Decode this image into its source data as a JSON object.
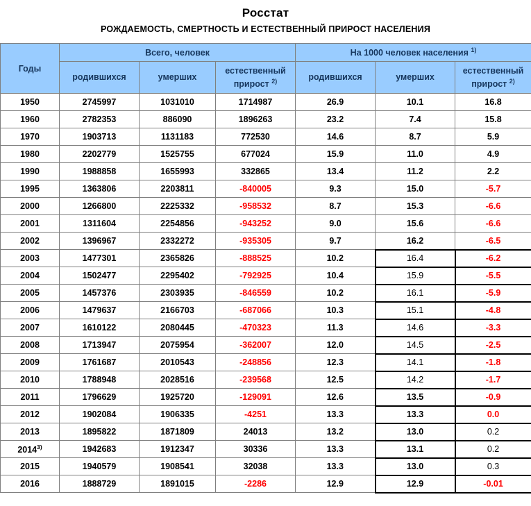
{
  "title": "Росстат",
  "subtitle": "РОЖДАЕМОСТЬ, СМЕРТНОСТЬ И ЕСТЕСТВЕННЫЙ ПРИРОСТ НАСЕЛЕНИЯ",
  "colors": {
    "header_bg": "#99CCFF",
    "header_text": "#17375E",
    "negative": "#FF0000",
    "grid": "#7F7F7F",
    "box_border": "#000000"
  },
  "header": {
    "years_label": "Годы",
    "group_total_label": "Всего, человек",
    "group_rate_label": "На 1000 человек населения",
    "group_rate_footnote": "1)",
    "born_label": "родившихся",
    "died_label": "умерших",
    "natural_label_line1": "естественный",
    "natural_label_line2": "прирост",
    "natural_footnote": "2)"
  },
  "chart_data": {
    "type": "table",
    "title": "Росстат",
    "subtitle": "РОЖДАЕМОСТЬ, СМЕРТНОСТЬ И ЕСТЕСТВЕННЫЙ ПРИРОСТ НАСЕЛЕНИЯ",
    "column_groups": [
      "Годы",
      "Всего, человек",
      "На 1000 человек населения 1)"
    ],
    "columns": [
      {
        "key": "born_total",
        "label": "родившихся",
        "group": "Всего, человек"
      },
      {
        "key": "died_total",
        "label": "умерших",
        "group": "Всего, человек"
      },
      {
        "key": "natural_total",
        "label": "естественный прирост 2)",
        "group": "Всего, человек"
      },
      {
        "key": "born_rate",
        "label": "родившихся",
        "group": "На 1000 человек населения 1)"
      },
      {
        "key": "died_rate",
        "label": "умерших",
        "group": "На 1000 человек населения 1)"
      },
      {
        "key": "natural_rate",
        "label": "естественный прирост 2)",
        "group": "На 1000 человек населения 1)"
      }
    ],
    "rows": [
      {
        "year": "1950",
        "year_sup": "",
        "values": {
          "born_total": "2745997",
          "died_total": "1031010",
          "natural_total": "1714987",
          "born_rate": "26.9",
          "died_rate": "10.1",
          "natural_rate": "16.8"
        },
        "cell_styles": {}
      },
      {
        "year": "1960",
        "year_sup": "",
        "values": {
          "born_total": "2782353",
          "died_total": "886090",
          "natural_total": "1896263",
          "born_rate": "23.2",
          "died_rate": "7.4",
          "natural_rate": "15.8"
        },
        "cell_styles": {}
      },
      {
        "year": "1970",
        "year_sup": "",
        "values": {
          "born_total": "1903713",
          "died_total": "1131183",
          "natural_total": "772530",
          "born_rate": "14.6",
          "died_rate": "8.7",
          "natural_rate": "5.9"
        },
        "cell_styles": {}
      },
      {
        "year": "1980",
        "year_sup": "",
        "values": {
          "born_total": "2202779",
          "died_total": "1525755",
          "natural_total": "677024",
          "born_rate": "15.9",
          "died_rate": "11.0",
          "natural_rate": "4.9"
        },
        "cell_styles": {}
      },
      {
        "year": "1990",
        "year_sup": "",
        "values": {
          "born_total": "1988858",
          "died_total": "1655993",
          "natural_total": "332865",
          "born_rate": "13.4",
          "died_rate": "11.2",
          "natural_rate": "2.2"
        },
        "cell_styles": {}
      },
      {
        "year": "1995",
        "year_sup": "",
        "values": {
          "born_total": "1363806",
          "died_total": "2203811",
          "natural_total": "-840005",
          "born_rate": "9.3",
          "died_rate": "15.0",
          "natural_rate": "-5.7"
        },
        "cell_styles": {
          "natural_total": "red",
          "natural_rate": "red"
        }
      },
      {
        "year": "2000",
        "year_sup": "",
        "values": {
          "born_total": "1266800",
          "died_total": "2225332",
          "natural_total": "-958532",
          "born_rate": "8.7",
          "died_rate": "15.3",
          "natural_rate": "-6.6"
        },
        "cell_styles": {
          "natural_total": "red",
          "natural_rate": "red"
        }
      },
      {
        "year": "2001",
        "year_sup": "",
        "values": {
          "born_total": "1311604",
          "died_total": "2254856",
          "natural_total": "-943252",
          "born_rate": "9.0",
          "died_rate": "15.6",
          "natural_rate": "-6.6"
        },
        "cell_styles": {
          "natural_total": "red",
          "natural_rate": "red"
        }
      },
      {
        "year": "2002",
        "year_sup": "",
        "values": {
          "born_total": "1396967",
          "died_total": "2332272",
          "natural_total": "-935305",
          "born_rate": "9.7",
          "died_rate": "16.2",
          "natural_rate": "-6.5"
        },
        "cell_styles": {
          "natural_total": "red",
          "natural_rate": "red"
        }
      },
      {
        "year": "2003",
        "year_sup": "",
        "values": {
          "born_total": "1477301",
          "died_total": "2365826",
          "natural_total": "-888525",
          "born_rate": "10.2",
          "died_rate": "16.4",
          "natural_rate": "-6.2"
        },
        "cell_styles": {
          "natural_total": "red",
          "died_rate": "light boxed",
          "natural_rate": "red boxed"
        }
      },
      {
        "year": "2004",
        "year_sup": "",
        "values": {
          "born_total": "1502477",
          "died_total": "2295402",
          "natural_total": "-792925",
          "born_rate": "10.4",
          "died_rate": "15.9",
          "natural_rate": "-5.5"
        },
        "cell_styles": {
          "natural_total": "red",
          "died_rate": "light boxed",
          "natural_rate": "red boxed"
        }
      },
      {
        "year": "2005",
        "year_sup": "",
        "values": {
          "born_total": "1457376",
          "died_total": "2303935",
          "natural_total": "-846559",
          "born_rate": "10.2",
          "died_rate": "16.1",
          "natural_rate": "-5.9"
        },
        "cell_styles": {
          "natural_total": "red",
          "died_rate": "light boxed",
          "natural_rate": "red boxed"
        }
      },
      {
        "year": "2006",
        "year_sup": "",
        "values": {
          "born_total": "1479637",
          "died_total": "2166703",
          "natural_total": "-687066",
          "born_rate": "10.3",
          "died_rate": "15.1",
          "natural_rate": "-4.8"
        },
        "cell_styles": {
          "natural_total": "red",
          "died_rate": "light boxed",
          "natural_rate": "red boxed"
        }
      },
      {
        "year": "2007",
        "year_sup": "",
        "values": {
          "born_total": "1610122",
          "died_total": "2080445",
          "natural_total": "-470323",
          "born_rate": "11.3",
          "died_rate": "14.6",
          "natural_rate": "-3.3"
        },
        "cell_styles": {
          "natural_total": "red",
          "died_rate": "light boxed",
          "natural_rate": "red boxed"
        }
      },
      {
        "year": "2008",
        "year_sup": "",
        "values": {
          "born_total": "1713947",
          "died_total": "2075954",
          "natural_total": "-362007",
          "born_rate": "12.0",
          "died_rate": "14.5",
          "natural_rate": "-2.5"
        },
        "cell_styles": {
          "natural_total": "red",
          "died_rate": "light boxed",
          "natural_rate": "red boxed"
        }
      },
      {
        "year": "2009",
        "year_sup": "",
        "values": {
          "born_total": "1761687",
          "died_total": "2010543",
          "natural_total": "-248856",
          "born_rate": "12.3",
          "died_rate": "14.1",
          "natural_rate": "-1.8"
        },
        "cell_styles": {
          "natural_total": "red",
          "died_rate": "light boxed",
          "natural_rate": "red boxed"
        }
      },
      {
        "year": "2010",
        "year_sup": "",
        "values": {
          "born_total": "1788948",
          "died_total": "2028516",
          "natural_total": "-239568",
          "born_rate": "12.5",
          "died_rate": "14.2",
          "natural_rate": "-1.7"
        },
        "cell_styles": {
          "natural_total": "red",
          "died_rate": "light boxed",
          "natural_rate": "red boxed"
        }
      },
      {
        "year": "2011",
        "year_sup": "",
        "values": {
          "born_total": "1796629",
          "died_total": "1925720",
          "natural_total": "-129091",
          "born_rate": "12.6",
          "died_rate": "13.5",
          "natural_rate": "-0.9"
        },
        "cell_styles": {
          "natural_total": "red",
          "died_rate": "boxed",
          "natural_rate": "red boxed"
        }
      },
      {
        "year": "2012",
        "year_sup": "",
        "values": {
          "born_total": "1902084",
          "died_total": "1906335",
          "natural_total": "-4251",
          "born_rate": "13.3",
          "died_rate": "13.3",
          "natural_rate": "0.0"
        },
        "cell_styles": {
          "natural_total": "red",
          "died_rate": "boxed",
          "natural_rate": "red boxed"
        }
      },
      {
        "year": "2013",
        "year_sup": "",
        "values": {
          "born_total": "1895822",
          "died_total": "1871809",
          "natural_total": "24013",
          "born_rate": "13.2",
          "died_rate": "13.0",
          "natural_rate": "0.2"
        },
        "cell_styles": {
          "died_rate": "boxed",
          "natural_rate": "light boxed"
        }
      },
      {
        "year": "2014",
        "year_sup": "3)",
        "values": {
          "born_total": "1942683",
          "died_total": "1912347",
          "natural_total": "30336",
          "born_rate": "13.3",
          "died_rate": "13.1",
          "natural_rate": "0.2"
        },
        "cell_styles": {
          "died_rate": "boxed",
          "natural_rate": "light boxed"
        }
      },
      {
        "year": "2015",
        "year_sup": "",
        "values": {
          "born_total": "1940579",
          "died_total": "1908541",
          "natural_total": "32038",
          "born_rate": "13.3",
          "died_rate": "13.0",
          "natural_rate": "0.3"
        },
        "cell_styles": {
          "died_rate": "boxed",
          "natural_rate": "light boxed"
        }
      },
      {
        "year": "2016",
        "year_sup": "",
        "values": {
          "born_total": "1888729",
          "died_total": "1891015",
          "natural_total": "-2286",
          "born_rate": "12.9",
          "died_rate": "12.9",
          "natural_rate": "-0.01"
        },
        "cell_styles": {
          "natural_total": "red",
          "died_rate": "boxed",
          "natural_rate": "red boxed"
        }
      }
    ]
  }
}
